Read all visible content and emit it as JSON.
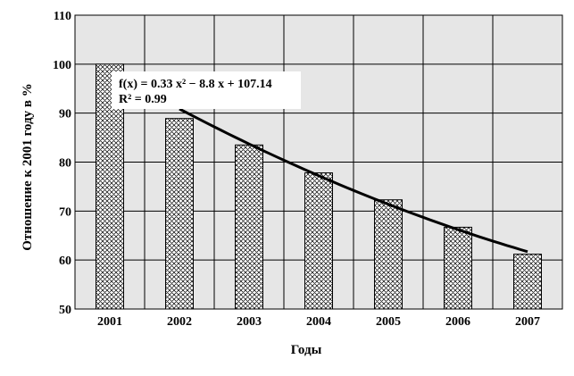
{
  "chart_data": {
    "type": "bar",
    "categories": [
      "2001",
      "2002",
      "2003",
      "2004",
      "2005",
      "2006",
      "2007"
    ],
    "values": [
      100,
      88.9,
      83.5,
      77.8,
      72.3,
      66.7,
      61.2
    ],
    "xlabel": "Годы",
    "ylabel": "Отношение к 2001 году в %",
    "ylim": [
      50,
      110
    ],
    "yticks": [
      50,
      60,
      70,
      80,
      90,
      100,
      110
    ],
    "grid": true,
    "trendline": {
      "type": "polynomial",
      "equation": "f(x) = 0.33 x² − 8.8 x + 107.14",
      "r2": "R² = 0.99",
      "coefficients": [
        0.33,
        -8.8,
        107.14
      ],
      "x_from": 2,
      "x_to": 7
    },
    "colors": {
      "plot_bg": "#e6e6e6",
      "bar_fill": "#ffffff",
      "bar_pattern": "#000000",
      "trend": "#000000"
    }
  }
}
